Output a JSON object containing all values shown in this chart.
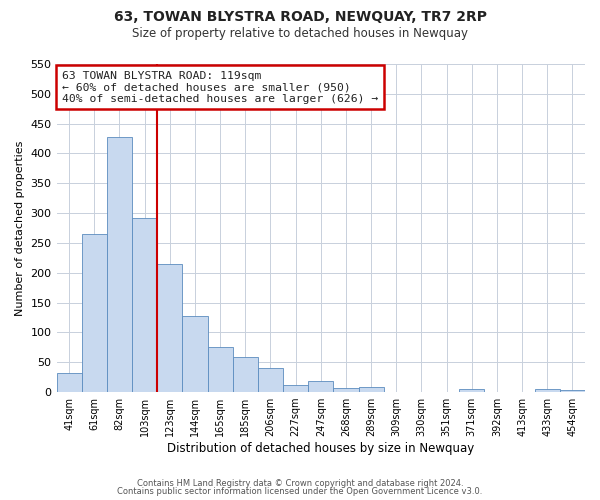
{
  "title": "63, TOWAN BLYSTRA ROAD, NEWQUAY, TR7 2RP",
  "subtitle": "Size of property relative to detached houses in Newquay",
  "xlabel": "Distribution of detached houses by size in Newquay",
  "ylabel": "Number of detached properties",
  "bin_labels": [
    "41sqm",
    "61sqm",
    "82sqm",
    "103sqm",
    "123sqm",
    "144sqm",
    "165sqm",
    "185sqm",
    "206sqm",
    "227sqm",
    "247sqm",
    "268sqm",
    "289sqm",
    "309sqm",
    "330sqm",
    "351sqm",
    "371sqm",
    "392sqm",
    "413sqm",
    "433sqm",
    "454sqm"
  ],
  "bar_heights": [
    32,
    265,
    428,
    291,
    215,
    128,
    75,
    58,
    40,
    12,
    18,
    7,
    9,
    0,
    0,
    0,
    5,
    0,
    0,
    5,
    3
  ],
  "bar_color": "#c8d9ef",
  "bar_edge_color": "#5b8cbf",
  "vline_x": 4,
  "vline_color": "#cc0000",
  "ylim": [
    0,
    550
  ],
  "yticks": [
    0,
    50,
    100,
    150,
    200,
    250,
    300,
    350,
    400,
    450,
    500,
    550
  ],
  "annotation_title": "63 TOWAN BLYSTRA ROAD: 119sqm",
  "annotation_line1": "← 60% of detached houses are smaller (950)",
  "annotation_line2": "40% of semi-detached houses are larger (626) →",
  "annotation_box_color": "#ffffff",
  "annotation_box_edge": "#cc0000",
  "footer1": "Contains HM Land Registry data © Crown copyright and database right 2024.",
  "footer2": "Contains public sector information licensed under the Open Government Licence v3.0.",
  "background_color": "#ffffff",
  "grid_color": "#c8d0dc"
}
